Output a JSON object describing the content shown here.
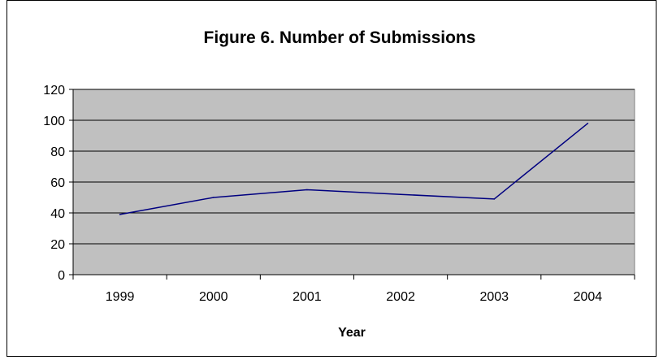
{
  "chart_data": {
    "type": "line",
    "title": "Figure 6.  Number of Submissions",
    "xlabel": "Year",
    "ylabel": "",
    "categories": [
      "1999",
      "2000",
      "2001",
      "2002",
      "2003",
      "2004"
    ],
    "series": [
      {
        "values": [
          39,
          50,
          55,
          52,
          49,
          98
        ]
      }
    ],
    "ylim": [
      0,
      120
    ],
    "yticks": [
      0,
      20,
      40,
      60,
      80,
      100,
      120
    ],
    "grid": true,
    "legend": "none",
    "colors": {
      "line": "#000080",
      "plot_background": "#c0c0c0",
      "gridline": "#000000",
      "frame": "#000000"
    }
  }
}
